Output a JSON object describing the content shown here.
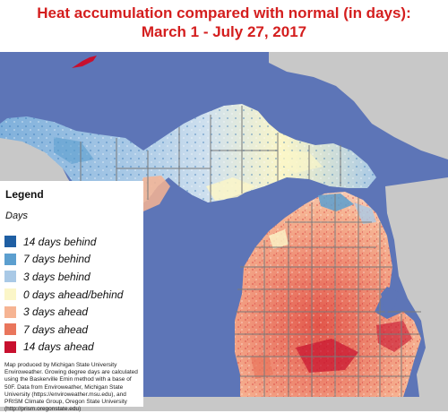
{
  "title_line1": "Heat accumulation compared with normal (in days):",
  "title_line2": "March 1 - July 27, 2017",
  "legend": {
    "heading": "Legend",
    "subheading": "Days",
    "items": [
      {
        "label": "14 days behind",
        "color": "#1f5fa3"
      },
      {
        "label": "7 days behind",
        "color": "#5c9fcf"
      },
      {
        "label": "3 days behind",
        "color": "#a9c9e6"
      },
      {
        "label": "0 days ahead/behind",
        "color": "#fbf6c8"
      },
      {
        "label": "3 days ahead",
        "color": "#f6b493"
      },
      {
        "label": "7 days ahead",
        "color": "#e9765c"
      },
      {
        "label": "14 days ahead",
        "color": "#c8102e"
      }
    ]
  },
  "credits": "Map produced by Michigan State University Enviroweather. Growing degree days are calculated using the Baskerville Emin method with a base of 50F. Data from Enviroweather, Michigan State University (https://enviroweather.msu.edu), and PRISM Climate Group, Oregon State University (http://prism.oregonstate.edu)",
  "colors": {
    "water": "#5d75b7",
    "land_outside": "#c8c8c8",
    "county_lines": "#7a7a7a"
  }
}
